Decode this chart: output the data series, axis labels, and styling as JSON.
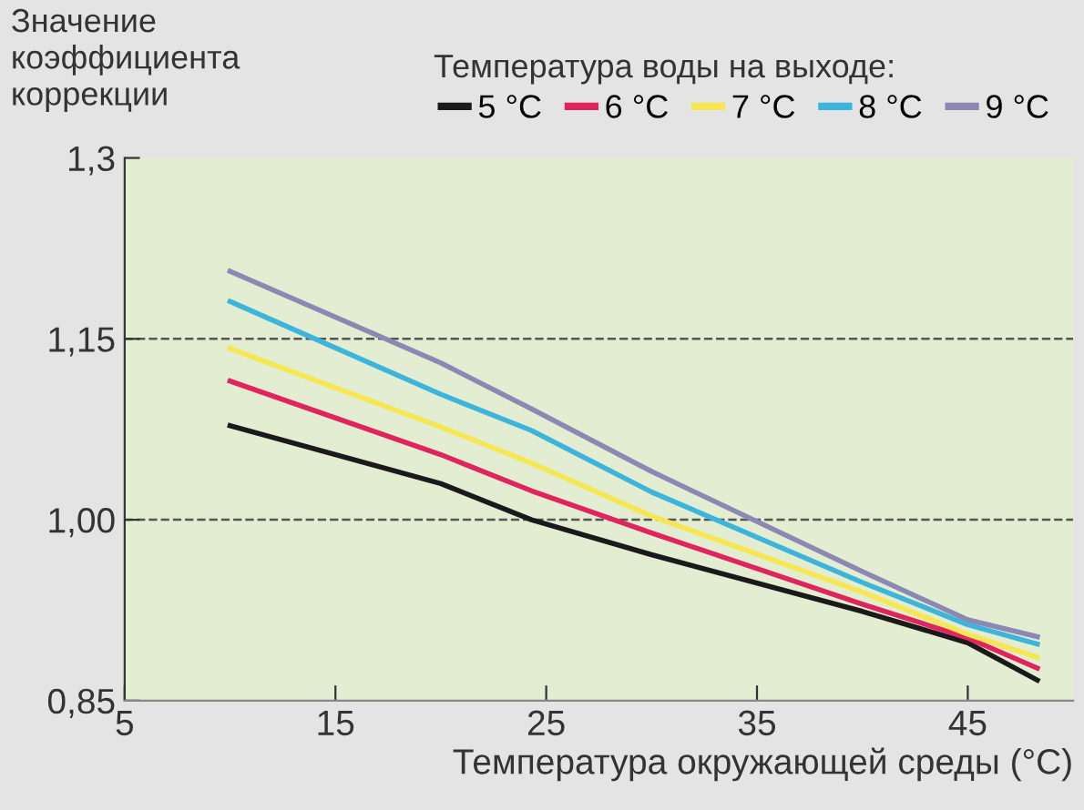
{
  "chart_data": {
    "type": "line",
    "ylabel": "Значение\nкоэффициента\nкоррекции",
    "xlabel": "Температура окружающей среды (°C)",
    "legend_title": "Температура воды на выходе:",
    "x": [
      10,
      20,
      24.3,
      30,
      40,
      45,
      48.3
    ],
    "series": [
      {
        "name": "5 °C",
        "color": "#1a1a1a",
        "values": [
          1.078,
          1.03,
          1.0,
          0.971,
          0.924,
          0.898,
          0.867
        ]
      },
      {
        "name": "6 °C",
        "color": "#e0245e",
        "values": [
          1.115,
          1.054,
          1.024,
          0.989,
          0.93,
          0.902,
          0.877
        ]
      },
      {
        "name": "7 °C",
        "color": "#f5e652",
        "values": [
          1.142,
          1.077,
          1.047,
          1.003,
          0.94,
          0.905,
          0.886
        ]
      },
      {
        "name": "8 °C",
        "color": "#3cb4dc",
        "values": [
          1.181,
          1.104,
          1.074,
          1.023,
          0.948,
          0.913,
          0.897
        ]
      },
      {
        "name": "9 °C",
        "color": "#8c88b4",
        "values": [
          1.206,
          1.13,
          1.092,
          1.04,
          0.957,
          0.917,
          0.903
        ]
      }
    ],
    "xlim": [
      5,
      50
    ],
    "ylim": [
      0.85,
      1.3
    ],
    "xticks": [
      5,
      15,
      25,
      35,
      45
    ],
    "yticks": [
      {
        "value": 0.85,
        "label": "0,85"
      },
      {
        "value": 1.0,
        "label": "1,00"
      },
      {
        "value": 1.15,
        "label": "1,15"
      },
      {
        "value": 1.3,
        "label": "1,3"
      }
    ],
    "ref_lines": [
      {
        "axis": "y",
        "value": 1.0,
        "line_style": "dashed",
        "color": "#555555"
      },
      {
        "axis": "y",
        "value": 1.15,
        "line_style": "dashed",
        "color": "#555555"
      }
    ],
    "legend": "top",
    "marker": "none",
    "line_style": "solid",
    "grid": false
  }
}
